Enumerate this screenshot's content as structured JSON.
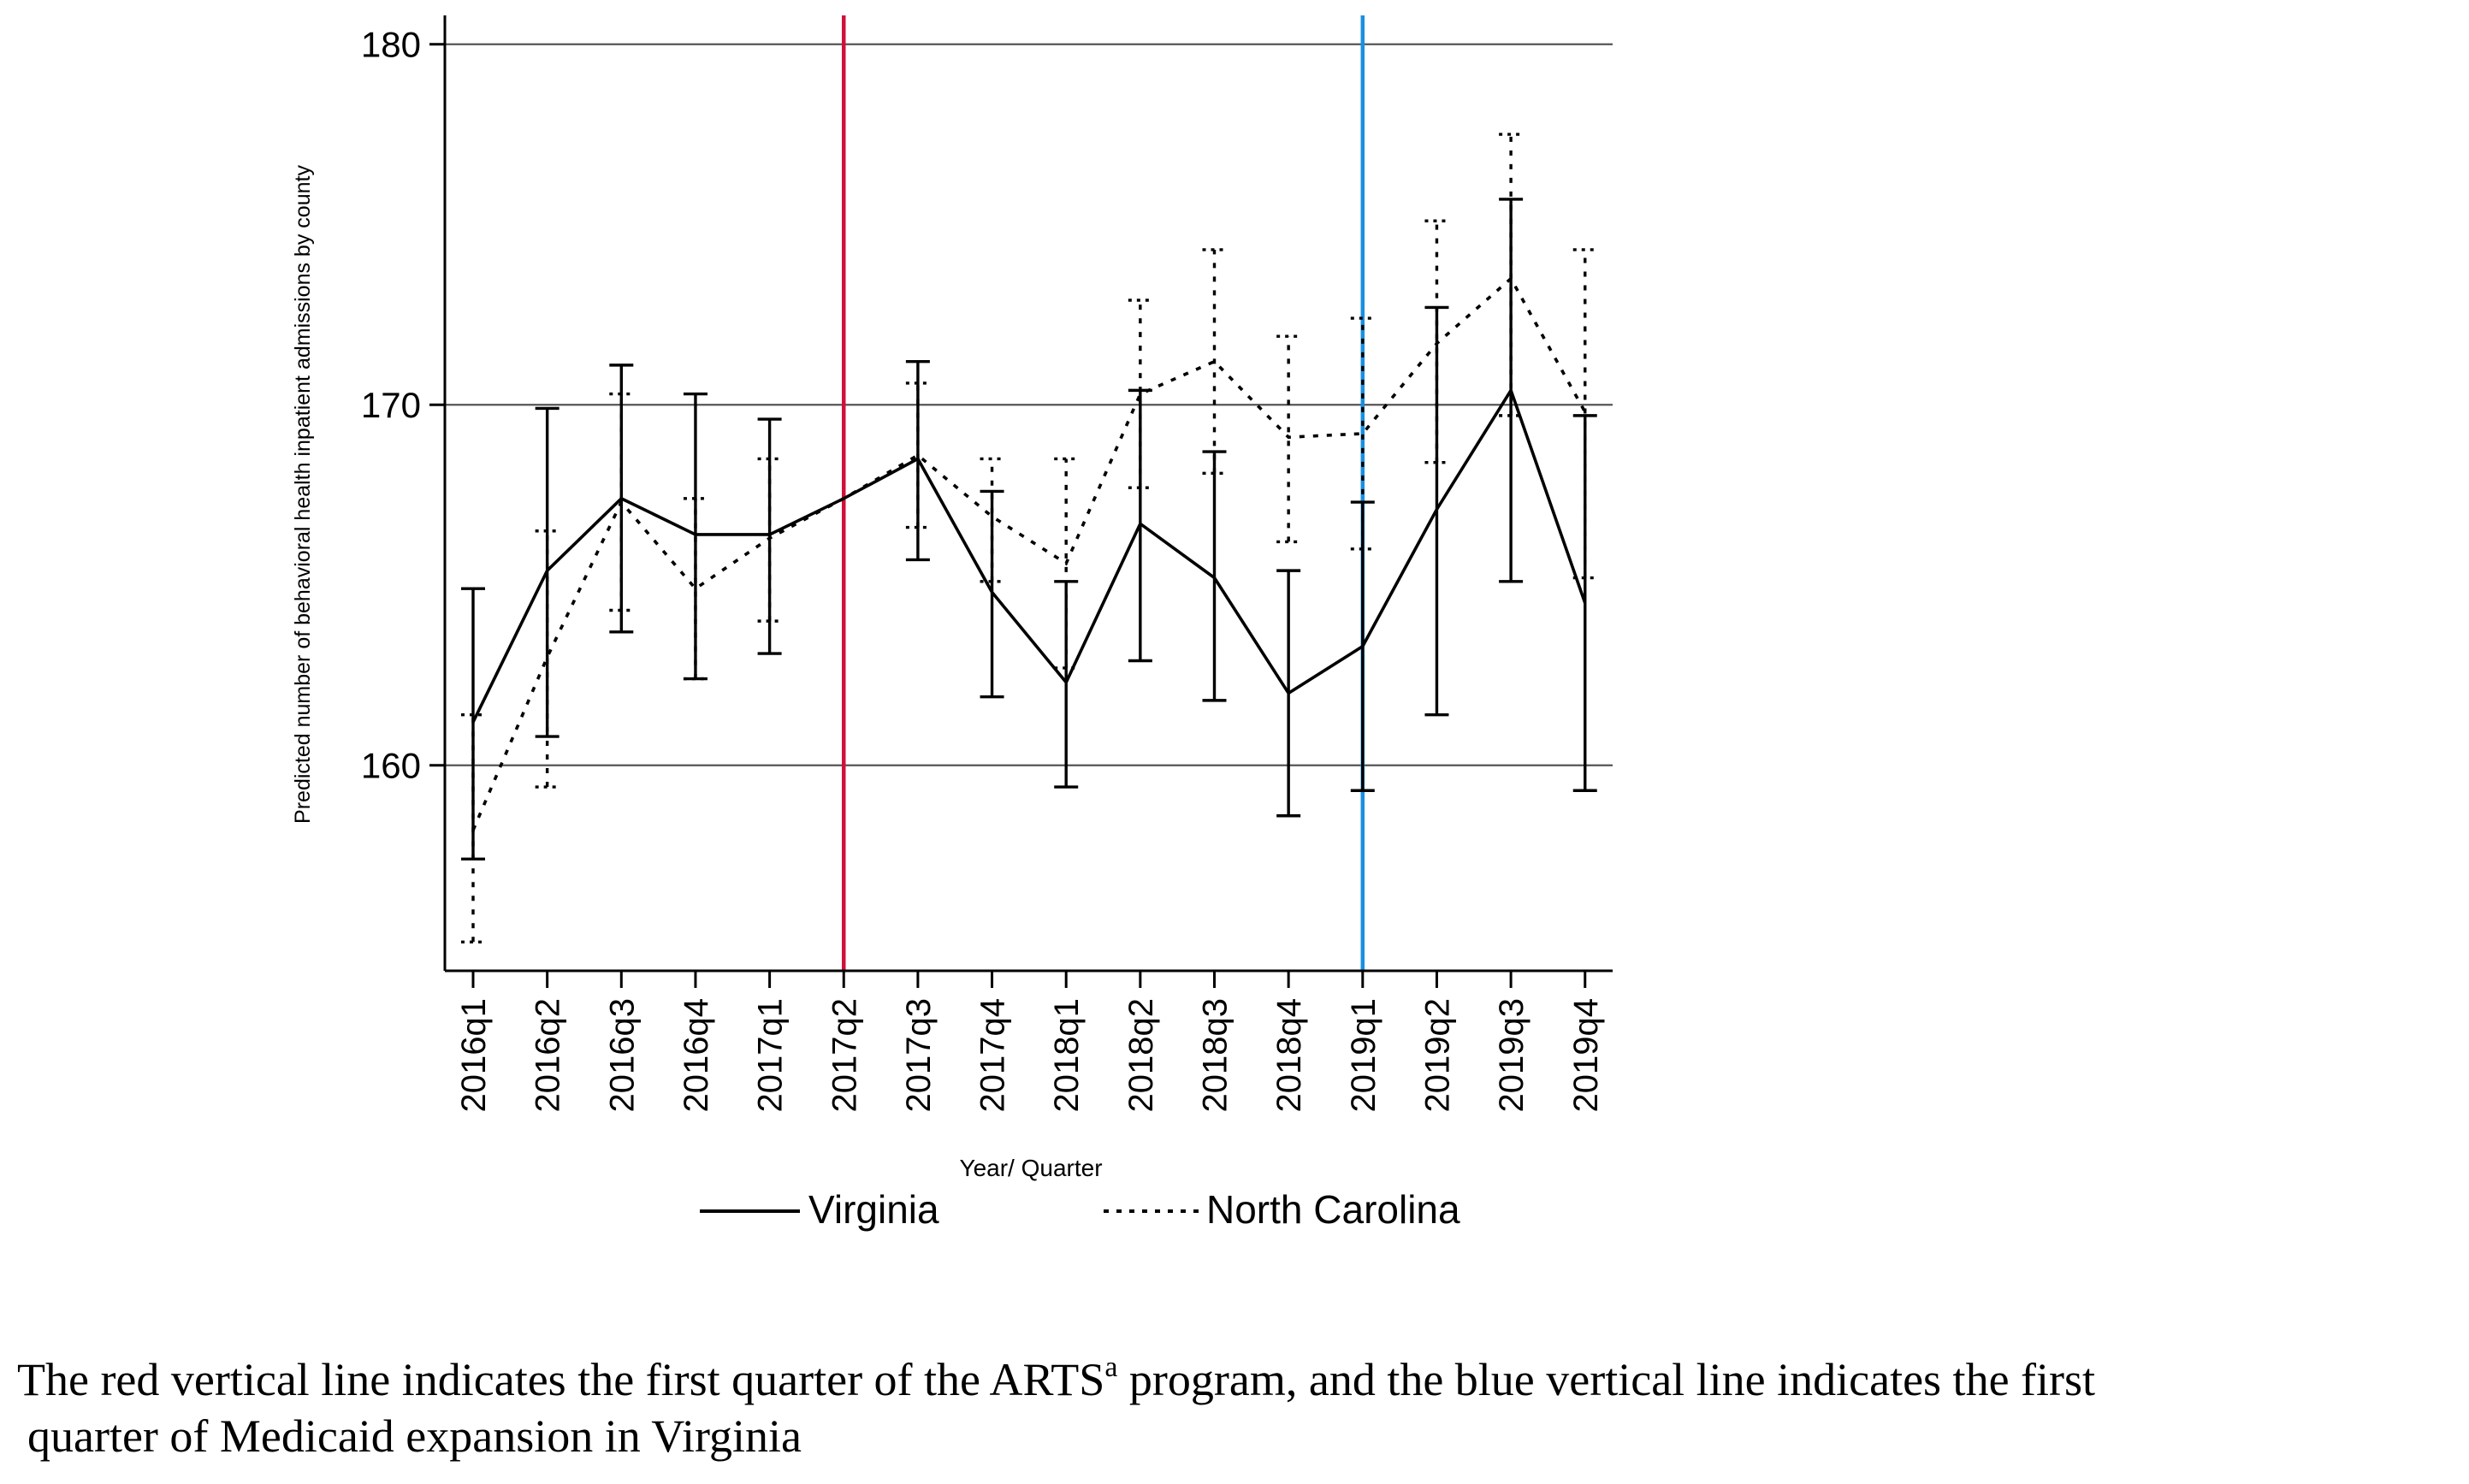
{
  "chart_data": {
    "type": "line",
    "title": "",
    "xlabel": "Year/ Quarter",
    "ylabel": "Predicted number of behavioral health inpatient admissions by county",
    "ylim": [
      154.3,
      180.8
    ],
    "yticks": [
      160,
      170,
      180
    ],
    "grid": true,
    "categories": [
      "2016q1",
      "2016q2",
      "2016q3",
      "2016q4",
      "2017q1",
      "2017q2",
      "2017q3",
      "2017q4",
      "2018q1",
      "2018q2",
      "2018q3",
      "2018q4",
      "2019q1",
      "2019q2",
      "2019q3",
      "2019q4"
    ],
    "series": [
      {
        "name": "Virginia",
        "style": "solid",
        "values": [
          161.2,
          165.4,
          167.4,
          166.4,
          166.4,
          167.4,
          168.5,
          164.8,
          162.3,
          166.7,
          165.2,
          162.0,
          163.3,
          167.1,
          170.4,
          164.5
        ],
        "lower": [
          157.4,
          160.8,
          163.7,
          162.4,
          163.1,
          null,
          165.7,
          161.9,
          159.4,
          162.9,
          161.8,
          158.6,
          159.3,
          161.4,
          165.1,
          159.3
        ],
        "upper": [
          164.9,
          169.9,
          171.1,
          170.3,
          169.6,
          null,
          171.2,
          167.6,
          165.1,
          170.4,
          168.7,
          165.4,
          167.3,
          172.7,
          175.7,
          169.7
        ]
      },
      {
        "name": "North Carolina",
        "style": "dotted",
        "values": [
          158.2,
          163.0,
          167.3,
          164.9,
          166.3,
          167.4,
          168.6,
          166.9,
          165.6,
          170.3,
          171.2,
          169.1,
          169.2,
          171.7,
          173.5,
          169.8
        ],
        "lower": [
          155.1,
          159.4,
          164.3,
          162.4,
          164.0,
          null,
          166.6,
          165.1,
          162.7,
          167.7,
          168.1,
          166.2,
          166.0,
          168.4,
          169.7,
          165.2
        ],
        "upper": [
          161.4,
          166.5,
          170.3,
          167.4,
          168.5,
          null,
          170.6,
          168.5,
          168.5,
          172.9,
          174.3,
          171.9,
          172.4,
          175.1,
          177.5,
          174.3
        ]
      }
    ],
    "vertical_lines": [
      {
        "at": "2017q2",
        "color": "#d0103a",
        "meaning": "first quarter of the ARTS program"
      },
      {
        "at": "2019q1",
        "color": "#1a8fe0",
        "meaning": "first quarter of Medicaid expansion in Virginia"
      }
    ],
    "legend": {
      "placement": "bottom-center",
      "entries": [
        "Virginia",
        "North Carolina"
      ]
    }
  },
  "caption": {
    "part1": "The red vertical line indicates the first quarter of the ARTS",
    "superscript": "a",
    "part2": " program, and the blue vertical line indicates the first",
    "line2": "quarter of Medicaid expansion in Virginia"
  }
}
